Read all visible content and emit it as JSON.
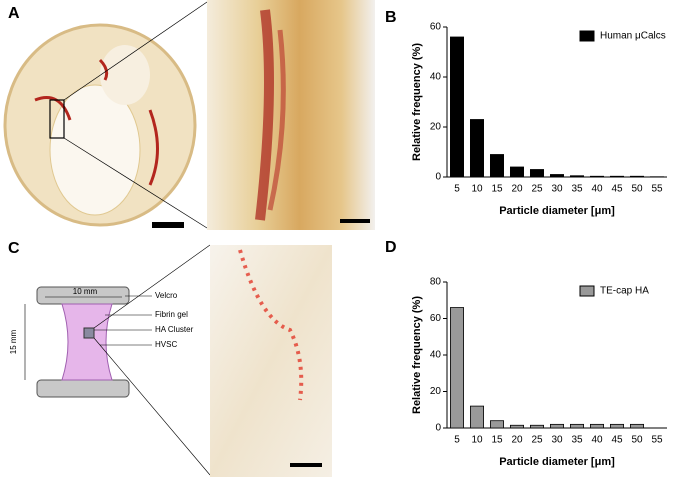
{
  "panels": {
    "a": "A",
    "b": "B",
    "c": "C",
    "d": "D"
  },
  "diagram": {
    "width_label": "10 mm",
    "height_label": "15 mm",
    "labels": [
      "Velcro",
      "Fibrin gel",
      "HA Cluster",
      "HVSC"
    ]
  },
  "chart_data": [
    {
      "type": "bar",
      "categories": [
        "5",
        "10",
        "15",
        "20",
        "25",
        "30",
        "35",
        "40",
        "45",
        "50",
        "55"
      ],
      "series": [
        {
          "name": "Human μCalcs",
          "color": "#000000",
          "values": [
            56,
            23,
            9,
            4,
            3,
            1,
            0.5,
            0.3,
            0.3,
            0.3,
            0.1
          ]
        }
      ],
      "x_label": "Particle diameter [μm]",
      "y_label": "Relative frequency (%)",
      "ylim": [
        0,
        60
      ],
      "yticks": [
        0,
        20,
        40,
        60
      ],
      "legend": "upper right"
    },
    {
      "type": "bar",
      "categories": [
        "5",
        "10",
        "15",
        "20",
        "25",
        "30",
        "35",
        "40",
        "45",
        "50",
        "55"
      ],
      "series": [
        {
          "name": "TE-cap HA",
          "color": "#999999",
          "values": [
            66,
            12,
            4,
            1.5,
            1.5,
            2,
            2,
            2,
            2,
            2,
            0
          ]
        }
      ],
      "x_label": "Particle diameter [μm]",
      "y_label": "Relative frequency (%)",
      "ylim": [
        0,
        80
      ],
      "yticks": [
        0,
        20,
        40,
        60,
        80
      ],
      "legend": "upper right"
    }
  ]
}
